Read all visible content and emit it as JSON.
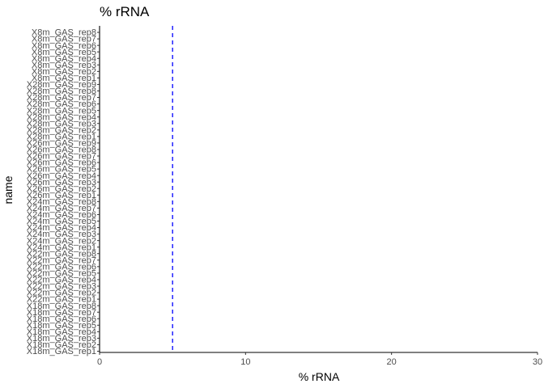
{
  "chart_data": {
    "type": "bar",
    "title": "% rRNA",
    "xlabel": "% rRNA",
    "ylabel": "name",
    "xlim": [
      0,
      30
    ],
    "x_ticks": [
      0,
      10,
      20,
      30
    ],
    "reference_line": {
      "value": 5,
      "color": "#0000ff",
      "style": "dashed"
    },
    "grid": false,
    "categories": [
      "X18m_GAS_rep1",
      "X18m_GAS_rep2",
      "X18m_GAS_rep3",
      "X18m_GAS_rep4",
      "X18m_GAS_rep5",
      "X18m_GAS_rep6",
      "X18m_GAS_rep7",
      "X18m_GAS_rep8",
      "X22m_GAS_rep1",
      "X22m_GAS_rep2",
      "X22m_GAS_rep3",
      "X22m_GAS_rep4",
      "X22m_GAS_rep5",
      "X22m_GAS_rep6",
      "X22m_GAS_rep7",
      "X22m_GAS_rep8",
      "X24m_GAS_rep1",
      "X24m_GAS_rep2",
      "X24m_GAS_rep3",
      "X24m_GAS_rep4",
      "X24m_GAS_rep5",
      "X24m_GAS_rep6",
      "X24m_GAS_rep7",
      "X24m_GAS_rep8",
      "X26m_GAS_rep1",
      "X26m_GAS_rep2",
      "X26m_GAS_rep3",
      "X26m_GAS_rep4",
      "X26m_GAS_rep5",
      "X26m_GAS_rep6",
      "X26m_GAS_rep7",
      "X26m_GAS_rep8",
      "X26m_GAS_rep9",
      "X28m_GAS_rep1",
      "X28m_GAS_rep2",
      "X28m_GAS_rep3",
      "X28m_GAS_rep4",
      "X28m_GAS_rep5",
      "X28m_GAS_rep6",
      "X28m_GAS_rep7",
      "X28m_GAS_rep8",
      "X28m_GAS_rep9",
      "X8m_GAS_rep1",
      "X8m_GAS_rep2",
      "X8m_GAS_rep3",
      "X8m_GAS_rep4",
      "X8m_GAS_rep5",
      "X8m_GAS_rep6",
      "X8m_GAS_rep7",
      "X8m_GAS_rep8"
    ],
    "values": [
      0,
      0,
      0,
      0,
      0,
      0,
      0,
      0,
      0,
      0,
      0,
      0,
      0,
      0,
      0,
      0,
      0,
      0,
      0,
      0,
      0,
      0,
      0,
      0,
      0,
      0,
      0,
      0,
      0,
      0,
      0,
      0,
      0,
      0,
      0,
      0,
      0,
      0,
      0,
      0,
      0,
      0,
      0,
      0,
      0,
      0,
      0,
      0,
      0,
      0
    ],
    "colors": {
      "axis": "#000000",
      "tick_label": "#4d4d4d",
      "title": "#000000",
      "reference_line": "#0000ff"
    }
  }
}
